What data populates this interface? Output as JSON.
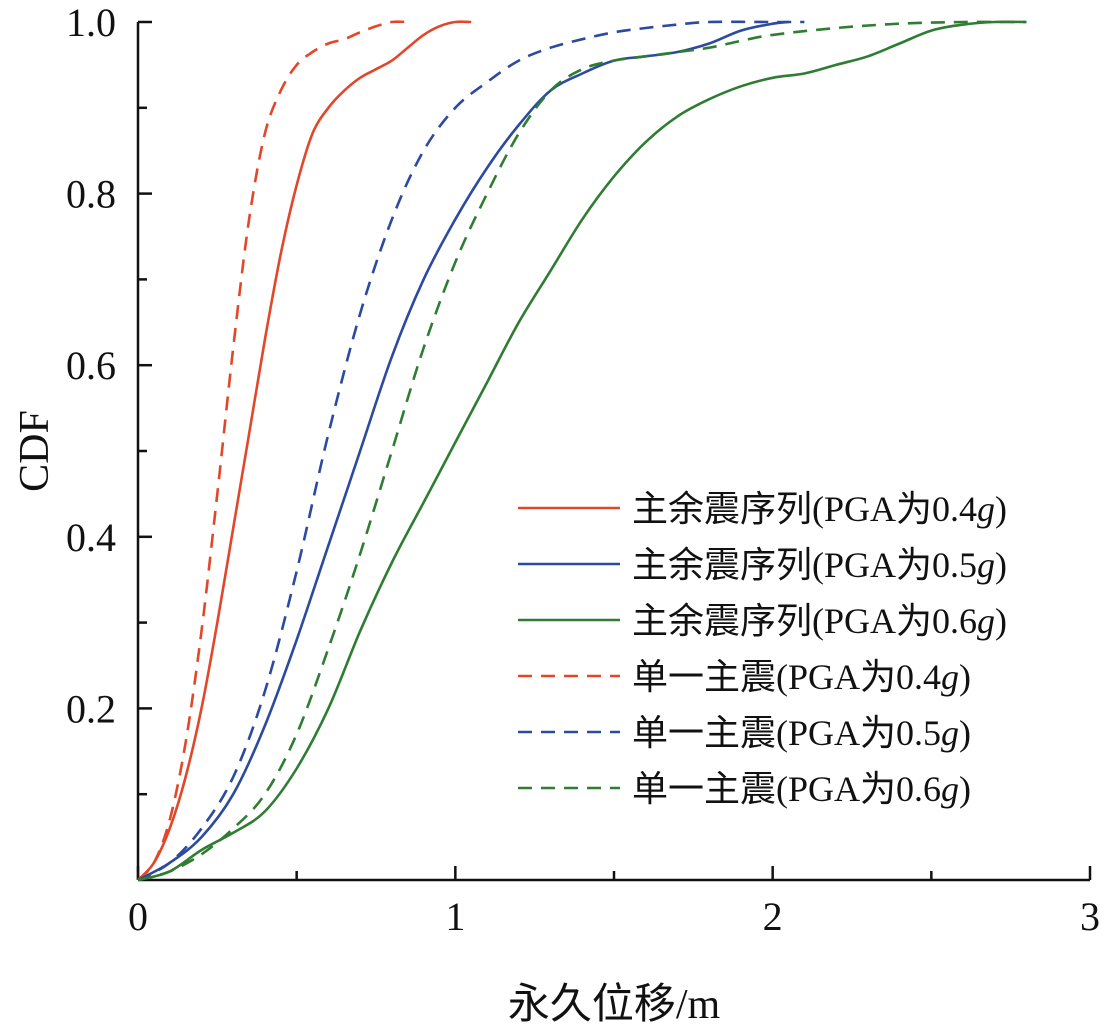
{
  "chart_data": {
    "type": "line",
    "title": "",
    "xlabel": "永久位移/m",
    "ylabel": "CDF",
    "xlim": [
      0,
      3
    ],
    "ylim": [
      0,
      1
    ],
    "xticks": [
      {
        "value": 0,
        "label": "0"
      },
      {
        "value": 1,
        "label": "1"
      },
      {
        "value": 2,
        "label": "2"
      },
      {
        "value": 3,
        "label": "3"
      }
    ],
    "yticks": [
      {
        "value": 0.2,
        "label": "0.2"
      },
      {
        "value": 0.4,
        "label": "0.4"
      },
      {
        "value": 0.6,
        "label": "0.6"
      },
      {
        "value": 0.8,
        "label": "0.8"
      },
      {
        "value": 1.0,
        "label": "1.0"
      }
    ],
    "legend_position": "bottom-right",
    "grid": false,
    "series": [
      {
        "name": "主余震序列(PGA为0.4g)",
        "label_main": "主余震序列(PGA为0.4",
        "label_tail": ")",
        "label_g": "g",
        "color": "#e2472a",
        "dash": false,
        "points": [
          [
            0,
            0
          ],
          [
            0.05,
            0.02
          ],
          [
            0.1,
            0.06
          ],
          [
            0.15,
            0.12
          ],
          [
            0.2,
            0.2
          ],
          [
            0.25,
            0.3
          ],
          [
            0.3,
            0.41
          ],
          [
            0.35,
            0.52
          ],
          [
            0.4,
            0.63
          ],
          [
            0.45,
            0.73
          ],
          [
            0.5,
            0.81
          ],
          [
            0.55,
            0.87
          ],
          [
            0.6,
            0.9
          ],
          [
            0.65,
            0.92
          ],
          [
            0.7,
            0.935
          ],
          [
            0.75,
            0.945
          ],
          [
            0.8,
            0.955
          ],
          [
            0.85,
            0.97
          ],
          [
            0.9,
            0.985
          ],
          [
            0.95,
            0.995
          ],
          [
            1.0,
            1.0
          ],
          [
            1.05,
            1.0
          ]
        ]
      },
      {
        "name": "主余震序列(PGA为0.5g)",
        "label_main": "主余震序列(PGA为0.5",
        "label_tail": ")",
        "label_g": "g",
        "color": "#2b4aa0",
        "dash": false,
        "points": [
          [
            0,
            0
          ],
          [
            0.1,
            0.02
          ],
          [
            0.2,
            0.05
          ],
          [
            0.3,
            0.1
          ],
          [
            0.4,
            0.18
          ],
          [
            0.5,
            0.28
          ],
          [
            0.6,
            0.39
          ],
          [
            0.7,
            0.5
          ],
          [
            0.8,
            0.61
          ],
          [
            0.9,
            0.7
          ],
          [
            1.0,
            0.77
          ],
          [
            1.1,
            0.83
          ],
          [
            1.2,
            0.88
          ],
          [
            1.3,
            0.92
          ],
          [
            1.4,
            0.94
          ],
          [
            1.5,
            0.955
          ],
          [
            1.6,
            0.96
          ],
          [
            1.7,
            0.965
          ],
          [
            1.8,
            0.975
          ],
          [
            1.9,
            0.99
          ],
          [
            2.0,
            0.998
          ],
          [
            2.05,
            1.0
          ]
        ]
      },
      {
        "name": "主余震序列(PGA为0.6g)",
        "label_main": "主余震序列(PGA为0.6",
        "label_tail": ")",
        "label_g": "g",
        "color": "#2f7d32",
        "dash": false,
        "points": [
          [
            0,
            0
          ],
          [
            0.1,
            0.01
          ],
          [
            0.2,
            0.035
          ],
          [
            0.3,
            0.055
          ],
          [
            0.4,
            0.08
          ],
          [
            0.5,
            0.13
          ],
          [
            0.6,
            0.2
          ],
          [
            0.7,
            0.29
          ],
          [
            0.8,
            0.37
          ],
          [
            0.9,
            0.44
          ],
          [
            1.0,
            0.51
          ],
          [
            1.1,
            0.58
          ],
          [
            1.2,
            0.65
          ],
          [
            1.3,
            0.71
          ],
          [
            1.4,
            0.77
          ],
          [
            1.5,
            0.82
          ],
          [
            1.6,
            0.86
          ],
          [
            1.7,
            0.89
          ],
          [
            1.8,
            0.91
          ],
          [
            1.9,
            0.925
          ],
          [
            2.0,
            0.935
          ],
          [
            2.1,
            0.94
          ],
          [
            2.2,
            0.95
          ],
          [
            2.3,
            0.96
          ],
          [
            2.4,
            0.975
          ],
          [
            2.5,
            0.99
          ],
          [
            2.6,
            0.997
          ],
          [
            2.7,
            1.0
          ],
          [
            2.8,
            1.0
          ]
        ]
      },
      {
        "name": "单一主震(PGA为0.4g)",
        "label_main": "单一主震(PGA为0.4",
        "label_tail": ")",
        "label_g": "g",
        "color": "#e2472a",
        "dash": true,
        "points": [
          [
            0,
            0
          ],
          [
            0.05,
            0.02
          ],
          [
            0.1,
            0.07
          ],
          [
            0.15,
            0.16
          ],
          [
            0.2,
            0.29
          ],
          [
            0.25,
            0.45
          ],
          [
            0.3,
            0.62
          ],
          [
            0.35,
            0.77
          ],
          [
            0.4,
            0.87
          ],
          [
            0.45,
            0.92
          ],
          [
            0.5,
            0.95
          ],
          [
            0.55,
            0.965
          ],
          [
            0.6,
            0.975
          ],
          [
            0.65,
            0.98
          ],
          [
            0.7,
            0.988
          ],
          [
            0.75,
            0.995
          ],
          [
            0.8,
            1.0
          ],
          [
            0.85,
            1.0
          ]
        ]
      },
      {
        "name": "单一主震(PGA为0.5g)",
        "label_main": "单一主震(PGA为0.5",
        "label_tail": ")",
        "label_g": "g",
        "color": "#2b4aa0",
        "dash": true,
        "points": [
          [
            0,
            0
          ],
          [
            0.1,
            0.02
          ],
          [
            0.2,
            0.06
          ],
          [
            0.3,
            0.12
          ],
          [
            0.4,
            0.22
          ],
          [
            0.5,
            0.36
          ],
          [
            0.6,
            0.52
          ],
          [
            0.7,
            0.66
          ],
          [
            0.8,
            0.77
          ],
          [
            0.9,
            0.85
          ],
          [
            1.0,
            0.9
          ],
          [
            1.1,
            0.93
          ],
          [
            1.2,
            0.955
          ],
          [
            1.3,
            0.97
          ],
          [
            1.4,
            0.98
          ],
          [
            1.5,
            0.988
          ],
          [
            1.6,
            0.993
          ],
          [
            1.7,
            0.997
          ],
          [
            1.8,
            1.0
          ],
          [
            2.0,
            1.0
          ],
          [
            2.1,
            1.0
          ]
        ]
      },
      {
        "name": "单一主震(PGA为0.6g)",
        "label_main": "单一主震(PGA为0.6",
        "label_tail": ")",
        "label_g": "g",
        "color": "#2f7d32",
        "dash": true,
        "points": [
          [
            0,
            0
          ],
          [
            0.1,
            0.01
          ],
          [
            0.2,
            0.03
          ],
          [
            0.3,
            0.06
          ],
          [
            0.4,
            0.1
          ],
          [
            0.5,
            0.17
          ],
          [
            0.6,
            0.27
          ],
          [
            0.7,
            0.38
          ],
          [
            0.8,
            0.5
          ],
          [
            0.9,
            0.62
          ],
          [
            1.0,
            0.72
          ],
          [
            1.1,
            0.8
          ],
          [
            1.2,
            0.87
          ],
          [
            1.3,
            0.92
          ],
          [
            1.4,
            0.945
          ],
          [
            1.5,
            0.955
          ],
          [
            1.6,
            0.96
          ],
          [
            1.7,
            0.965
          ],
          [
            1.8,
            0.97
          ],
          [
            1.9,
            0.978
          ],
          [
            2.0,
            0.985
          ],
          [
            2.2,
            0.993
          ],
          [
            2.4,
            0.998
          ],
          [
            2.6,
            1.0
          ],
          [
            2.8,
            1.0
          ]
        ]
      }
    ]
  }
}
